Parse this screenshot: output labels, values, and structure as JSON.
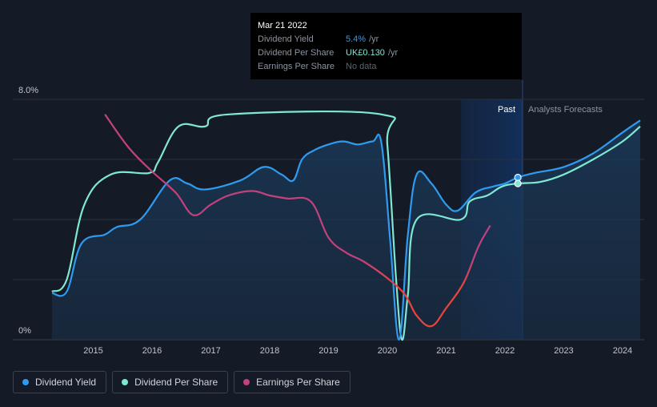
{
  "tooltip": {
    "date": "Mar 21 2022",
    "rows": [
      {
        "label": "Dividend Yield",
        "value": "5.4%",
        "unit": "/yr"
      },
      {
        "label": "Dividend Per Share",
        "value": "UK£0.130",
        "unit": "/yr"
      },
      {
        "label": "Earnings Per Share",
        "value": "No data"
      }
    ]
  },
  "regions": {
    "past_label": "Past",
    "forecast_label": "Analysts Forecasts"
  },
  "colors": {
    "background": "#151b26",
    "dividend_yield": "#2f9bf0",
    "dividend_per_share": "#7ee8d3",
    "eps_positive": "#c2417e",
    "eps_negative": "#e8453c"
  },
  "legend": [
    {
      "label": "Dividend Yield",
      "color": "#2f9bf0"
    },
    {
      "label": "Dividend Per Share",
      "color": "#7ee8d3"
    },
    {
      "label": "Earnings Per Share",
      "color": "#c2417e"
    }
  ],
  "chart_data": {
    "type": "line",
    "x_ticks": [
      "2015",
      "2016",
      "2017",
      "2018",
      "2019",
      "2020",
      "2021",
      "2022",
      "2023",
      "2024"
    ],
    "y_ticks": [
      "0%",
      "8.0%"
    ],
    "ylim": [
      0,
      8
    ],
    "xlim": [
      2014.0,
      2024.3
    ],
    "past_end": 2022.22,
    "series": [
      {
        "name": "Dividend Yield",
        "unit": "%",
        "points": [
          [
            2014.3,
            1.55
          ],
          [
            2014.55,
            1.6
          ],
          [
            2014.8,
            3.2
          ],
          [
            2015.2,
            3.5
          ],
          [
            2015.4,
            3.75
          ],
          [
            2015.8,
            4.0
          ],
          [
            2016.3,
            5.3
          ],
          [
            2016.6,
            5.2
          ],
          [
            2016.9,
            5.0
          ],
          [
            2017.5,
            5.3
          ],
          [
            2017.9,
            5.75
          ],
          [
            2018.2,
            5.5
          ],
          [
            2018.4,
            5.3
          ],
          [
            2018.55,
            6.0
          ],
          [
            2018.75,
            6.3
          ],
          [
            2019.0,
            6.5
          ],
          [
            2019.25,
            6.6
          ],
          [
            2019.5,
            6.5
          ],
          [
            2019.75,
            6.6
          ],
          [
            2019.9,
            6.55
          ],
          [
            2020.05,
            3.3
          ],
          [
            2020.2,
            0.0
          ],
          [
            2020.35,
            3.5
          ],
          [
            2020.5,
            5.5
          ],
          [
            2020.75,
            5.2
          ],
          [
            2021.0,
            4.5
          ],
          [
            2021.2,
            4.3
          ],
          [
            2021.5,
            4.9
          ],
          [
            2021.8,
            5.1
          ],
          [
            2022.0,
            5.2
          ],
          [
            2022.22,
            5.4
          ],
          [
            2022.5,
            5.55
          ],
          [
            2023.0,
            5.75
          ],
          [
            2023.5,
            6.2
          ],
          [
            2024.0,
            6.9
          ],
          [
            2024.3,
            7.3
          ]
        ]
      },
      {
        "name": "Dividend Per Share",
        "unit": "UK£",
        "points": [
          [
            2014.3,
            1.6
          ],
          [
            2014.55,
            2.0
          ],
          [
            2014.85,
            4.5
          ],
          [
            2015.3,
            5.5
          ],
          [
            2015.95,
            5.55
          ],
          [
            2016.1,
            5.9
          ],
          [
            2016.45,
            7.1
          ],
          [
            2016.9,
            7.1
          ],
          [
            2017.3,
            7.5
          ],
          [
            2019.9,
            7.5
          ],
          [
            2020.0,
            6.5
          ],
          [
            2020.15,
            2.0
          ],
          [
            2020.25,
            0.0
          ],
          [
            2020.35,
            1.5
          ],
          [
            2020.5,
            4.0
          ],
          [
            2021.25,
            4.0
          ],
          [
            2021.4,
            4.6
          ],
          [
            2021.7,
            4.8
          ],
          [
            2021.95,
            5.1
          ],
          [
            2022.22,
            5.2
          ],
          [
            2022.6,
            5.25
          ],
          [
            2023.0,
            5.5
          ],
          [
            2023.5,
            6.0
          ],
          [
            2024.0,
            6.6
          ],
          [
            2024.3,
            7.1
          ]
        ]
      },
      {
        "name": "Earnings Per Share",
        "unit": "UK£",
        "points": [
          [
            2015.2,
            7.5
          ],
          [
            2015.6,
            6.4
          ],
          [
            2016.0,
            5.6
          ],
          [
            2016.4,
            4.9
          ],
          [
            2016.7,
            4.15
          ],
          [
            2017.0,
            4.5
          ],
          [
            2017.3,
            4.8
          ],
          [
            2017.7,
            4.95
          ],
          [
            2018.0,
            4.8
          ],
          [
            2018.3,
            4.7
          ],
          [
            2018.7,
            4.6
          ],
          [
            2019.0,
            3.4
          ],
          [
            2019.3,
            2.9
          ],
          [
            2019.6,
            2.6
          ],
          [
            2020.0,
            2.05
          ],
          [
            2020.3,
            1.5
          ],
          [
            2020.5,
            0.8
          ],
          [
            2020.75,
            0.45
          ],
          [
            2021.0,
            1.05
          ],
          [
            2021.3,
            1.9
          ],
          [
            2021.55,
            3.1
          ],
          [
            2021.75,
            3.8
          ]
        ]
      }
    ]
  }
}
